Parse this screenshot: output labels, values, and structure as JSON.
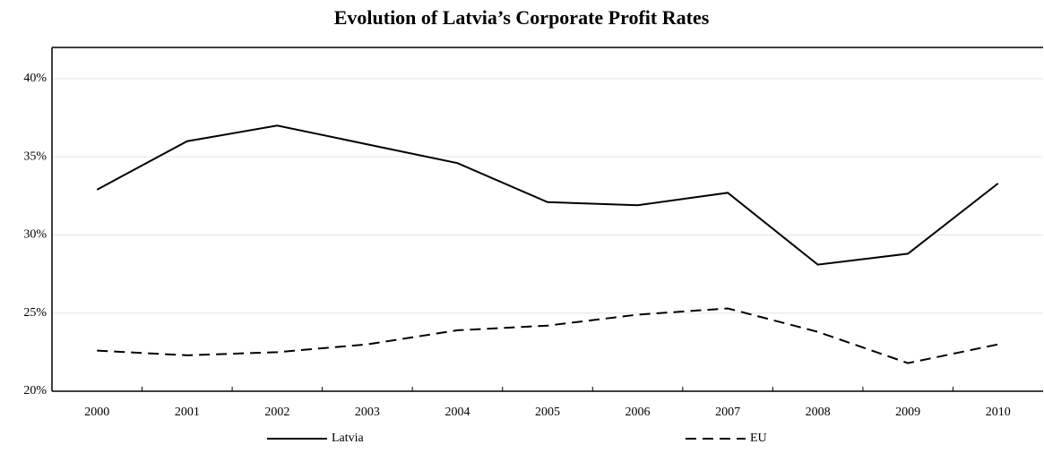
{
  "chart_data": {
    "type": "line",
    "title": "Evolution of Latvia’s Corporate Profit Rates",
    "categories": [
      "2000",
      "2001",
      "2002",
      "2003",
      "2004",
      "2005",
      "2006",
      "2007",
      "2008",
      "2009",
      "2010"
    ],
    "series": [
      {
        "name": "Latvia",
        "color": "#000000",
        "linestyle": "solid",
        "values": [
          32.9,
          36.0,
          37.0,
          35.8,
          34.6,
          32.1,
          31.9,
          32.7,
          28.1,
          28.8,
          33.3
        ]
      },
      {
        "name": "EU",
        "color": "#000000",
        "linestyle": "dashed",
        "values": [
          22.6,
          22.3,
          22.5,
          23.0,
          23.9,
          24.2,
          24.9,
          25.3,
          23.8,
          21.8,
          23.0
        ]
      }
    ],
    "ylim": [
      20,
      42
    ],
    "yticks": [
      {
        "value": 20,
        "label": "20%"
      },
      {
        "value": 25,
        "label": "25%"
      },
      {
        "value": 30,
        "label": "30%"
      },
      {
        "value": 35,
        "label": "35%"
      },
      {
        "value": 40,
        "label": "40%"
      }
    ],
    "grid": true,
    "legend": "bottom"
  }
}
